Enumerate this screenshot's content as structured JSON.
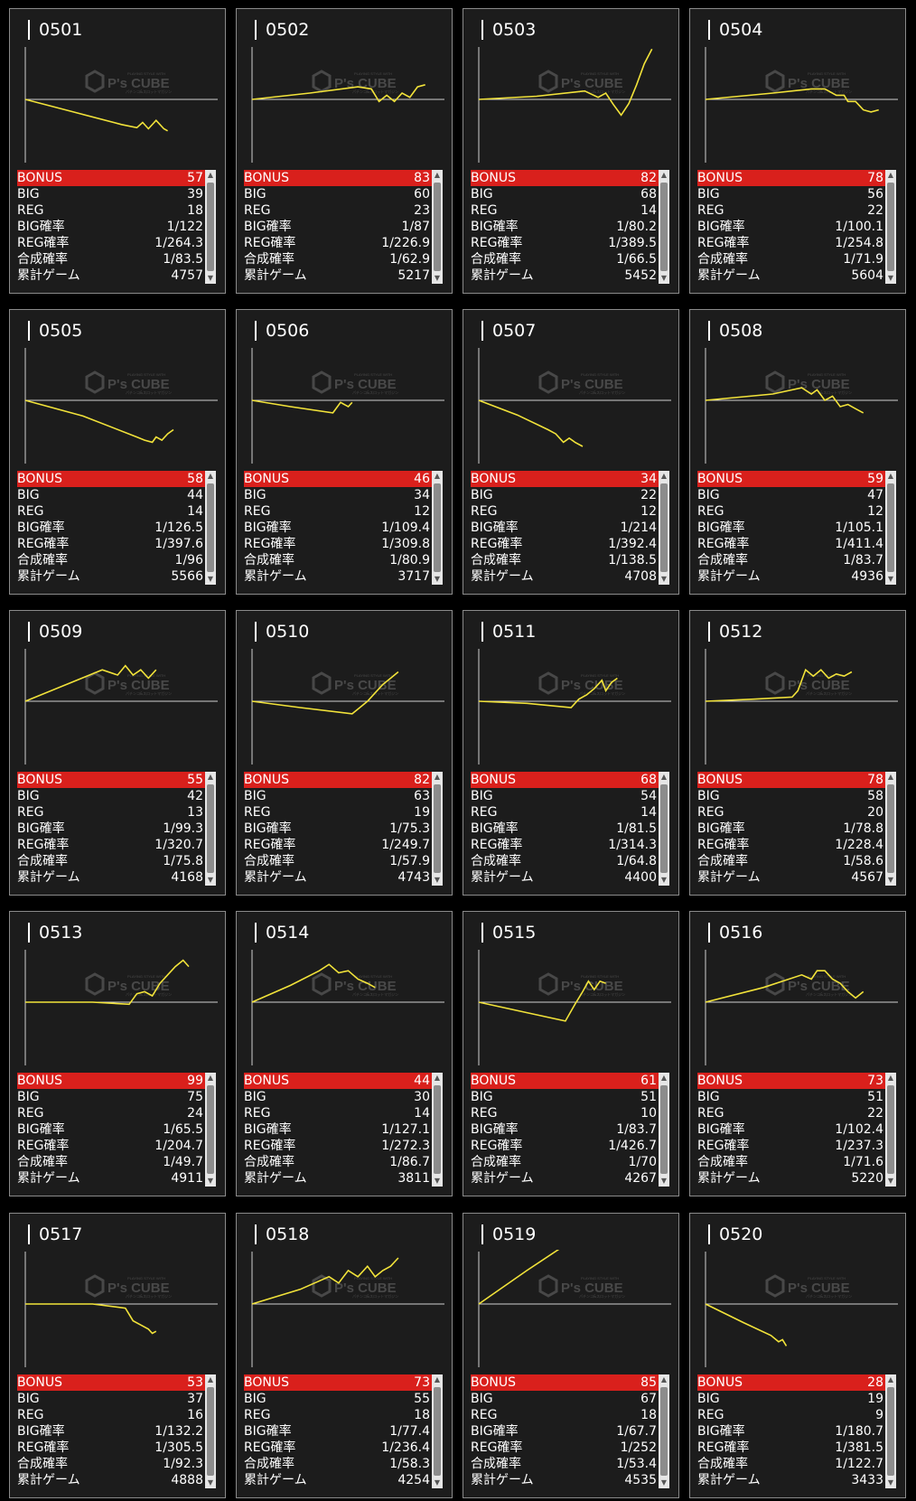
{
  "labels": {
    "bonus": "BONUS",
    "big": "BIG",
    "reg": "REG",
    "big_rate": "BIG確率",
    "reg_rate": "REG確率",
    "total_rate": "合成確率",
    "total_games": "累計ゲーム"
  },
  "watermark": {
    "brand": "P's CUBE",
    "small_top": "PLAYING STYLE WITH",
    "small_bottom": "パチンコ&スロットマガジン"
  },
  "colors": {
    "bonus_bg": "#d9201c",
    "line": "#f2e33a",
    "card_bg": "#1c1c1c"
  },
  "machines": [
    {
      "id": "0501",
      "bonus": "57",
      "big": "39",
      "reg": "18",
      "big_rate": "1/122",
      "reg_rate": "1/264.3",
      "total_rate": "1/83.5",
      "games": "4757"
    },
    {
      "id": "0502",
      "bonus": "83",
      "big": "60",
      "reg": "23",
      "big_rate": "1/87",
      "reg_rate": "1/226.9",
      "total_rate": "1/62.9",
      "games": "5217"
    },
    {
      "id": "0503",
      "bonus": "82",
      "big": "68",
      "reg": "14",
      "big_rate": "1/80.2",
      "reg_rate": "1/389.5",
      "total_rate": "1/66.5",
      "games": "5452"
    },
    {
      "id": "0504",
      "bonus": "78",
      "big": "56",
      "reg": "22",
      "big_rate": "1/100.1",
      "reg_rate": "1/254.8",
      "total_rate": "1/71.9",
      "games": "5604"
    },
    {
      "id": "0505",
      "bonus": "58",
      "big": "44",
      "reg": "14",
      "big_rate": "1/126.5",
      "reg_rate": "1/397.6",
      "total_rate": "1/96",
      "games": "5566"
    },
    {
      "id": "0506",
      "bonus": "46",
      "big": "34",
      "reg": "12",
      "big_rate": "1/109.4",
      "reg_rate": "1/309.8",
      "total_rate": "1/80.9",
      "games": "3717"
    },
    {
      "id": "0507",
      "bonus": "34",
      "big": "22",
      "reg": "12",
      "big_rate": "1/214",
      "reg_rate": "1/392.4",
      "total_rate": "1/138.5",
      "games": "4708"
    },
    {
      "id": "0508",
      "bonus": "59",
      "big": "47",
      "reg": "12",
      "big_rate": "1/105.1",
      "reg_rate": "1/411.4",
      "total_rate": "1/83.7",
      "games": "4936"
    },
    {
      "id": "0509",
      "bonus": "55",
      "big": "42",
      "reg": "13",
      "big_rate": "1/99.3",
      "reg_rate": "1/320.7",
      "total_rate": "1/75.8",
      "games": "4168"
    },
    {
      "id": "0510",
      "bonus": "82",
      "big": "63",
      "reg": "19",
      "big_rate": "1/75.3",
      "reg_rate": "1/249.7",
      "total_rate": "1/57.9",
      "games": "4743"
    },
    {
      "id": "0511",
      "bonus": "68",
      "big": "54",
      "reg": "14",
      "big_rate": "1/81.5",
      "reg_rate": "1/314.3",
      "total_rate": "1/64.8",
      "games": "4400"
    },
    {
      "id": "0512",
      "bonus": "78",
      "big": "58",
      "reg": "20",
      "big_rate": "1/78.8",
      "reg_rate": "1/228.4",
      "total_rate": "1/58.6",
      "games": "4567"
    },
    {
      "id": "0513",
      "bonus": "99",
      "big": "75",
      "reg": "24",
      "big_rate": "1/65.5",
      "reg_rate": "1/204.7",
      "total_rate": "1/49.7",
      "games": "4911"
    },
    {
      "id": "0514",
      "bonus": "44",
      "big": "30",
      "reg": "14",
      "big_rate": "1/127.1",
      "reg_rate": "1/272.3",
      "total_rate": "1/86.7",
      "games": "3811"
    },
    {
      "id": "0515",
      "bonus": "61",
      "big": "51",
      "reg": "10",
      "big_rate": "1/83.7",
      "reg_rate": "1/426.7",
      "total_rate": "1/70",
      "games": "4267"
    },
    {
      "id": "0516",
      "bonus": "73",
      "big": "51",
      "reg": "22",
      "big_rate": "1/102.4",
      "reg_rate": "1/237.3",
      "total_rate": "1/71.6",
      "games": "5220"
    },
    {
      "id": "0517",
      "bonus": "53",
      "big": "37",
      "reg": "16",
      "big_rate": "1/132.2",
      "reg_rate": "1/305.5",
      "total_rate": "1/92.3",
      "games": "4888"
    },
    {
      "id": "0518",
      "bonus": "73",
      "big": "55",
      "reg": "18",
      "big_rate": "1/77.4",
      "reg_rate": "1/236.4",
      "total_rate": "1/58.3",
      "games": "4254"
    },
    {
      "id": "0519",
      "bonus": "85",
      "big": "67",
      "reg": "18",
      "big_rate": "1/67.7",
      "reg_rate": "1/252",
      "total_rate": "1/53.4",
      "games": "4535"
    },
    {
      "id": "0520",
      "bonus": "28",
      "big": "19",
      "reg": "9",
      "big_rate": "1/180.7",
      "reg_rate": "1/381.5",
      "total_rate": "1/122.7",
      "games": "3433"
    }
  ]
}
